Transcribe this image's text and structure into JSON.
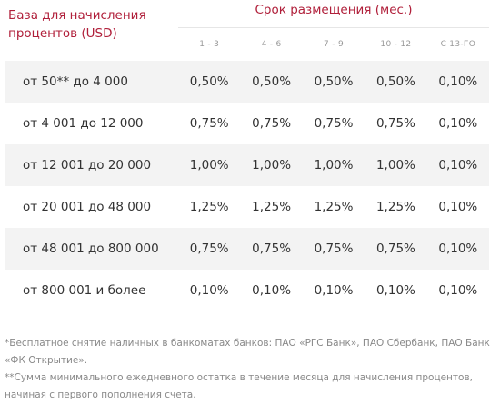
{
  "header": {
    "base_title": "База для начисления процентов (USD)",
    "term_title": "Срок размещения (мес.)",
    "term_columns": [
      "1 - 3",
      "4 - 6",
      "7 - 9",
      "10 - 12",
      "С 13-ГО"
    ]
  },
  "rows": [
    {
      "label": "от 50** до 4 000",
      "values": [
        "0,50%",
        "0,50%",
        "0,50%",
        "0,50%",
        "0,10%"
      ]
    },
    {
      "label": "от 4 001 до 12 000",
      "values": [
        "0,75%",
        "0,75%",
        "0,75%",
        "0,75%",
        "0,10%"
      ]
    },
    {
      "label": "от 12 001 до 20 000",
      "values": [
        "1,00%",
        "1,00%",
        "1,00%",
        "1,00%",
        "0,10%"
      ]
    },
    {
      "label": "от 20 001 до 48 000",
      "values": [
        "1,25%",
        "1,25%",
        "1,25%",
        "1,25%",
        "0,10%"
      ]
    },
    {
      "label": "от 48 001 до 800 000",
      "values": [
        "0,75%",
        "0,75%",
        "0,75%",
        "0,75%",
        "0,10%"
      ]
    },
    {
      "label": "от 800 001 и более",
      "values": [
        "0,10%",
        "0,10%",
        "0,10%",
        "0,10%",
        "0,10%"
      ]
    }
  ],
  "footnotes": {
    "first": "*Бесплатное снятие наличных в банкоматах банков: ПАО «РГС Банк», ПАО Сбербанк, ПАО Банк «ФК Открытие».",
    "second": "**Сумма минимального ежедневного остатка в течение месяца для начисления процентов, начиная с первого пополнения счета."
  },
  "colors": {
    "accent": "#b01f3a",
    "row_shade": "#f3f3f3",
    "text": "#333333",
    "muted": "#999999"
  }
}
